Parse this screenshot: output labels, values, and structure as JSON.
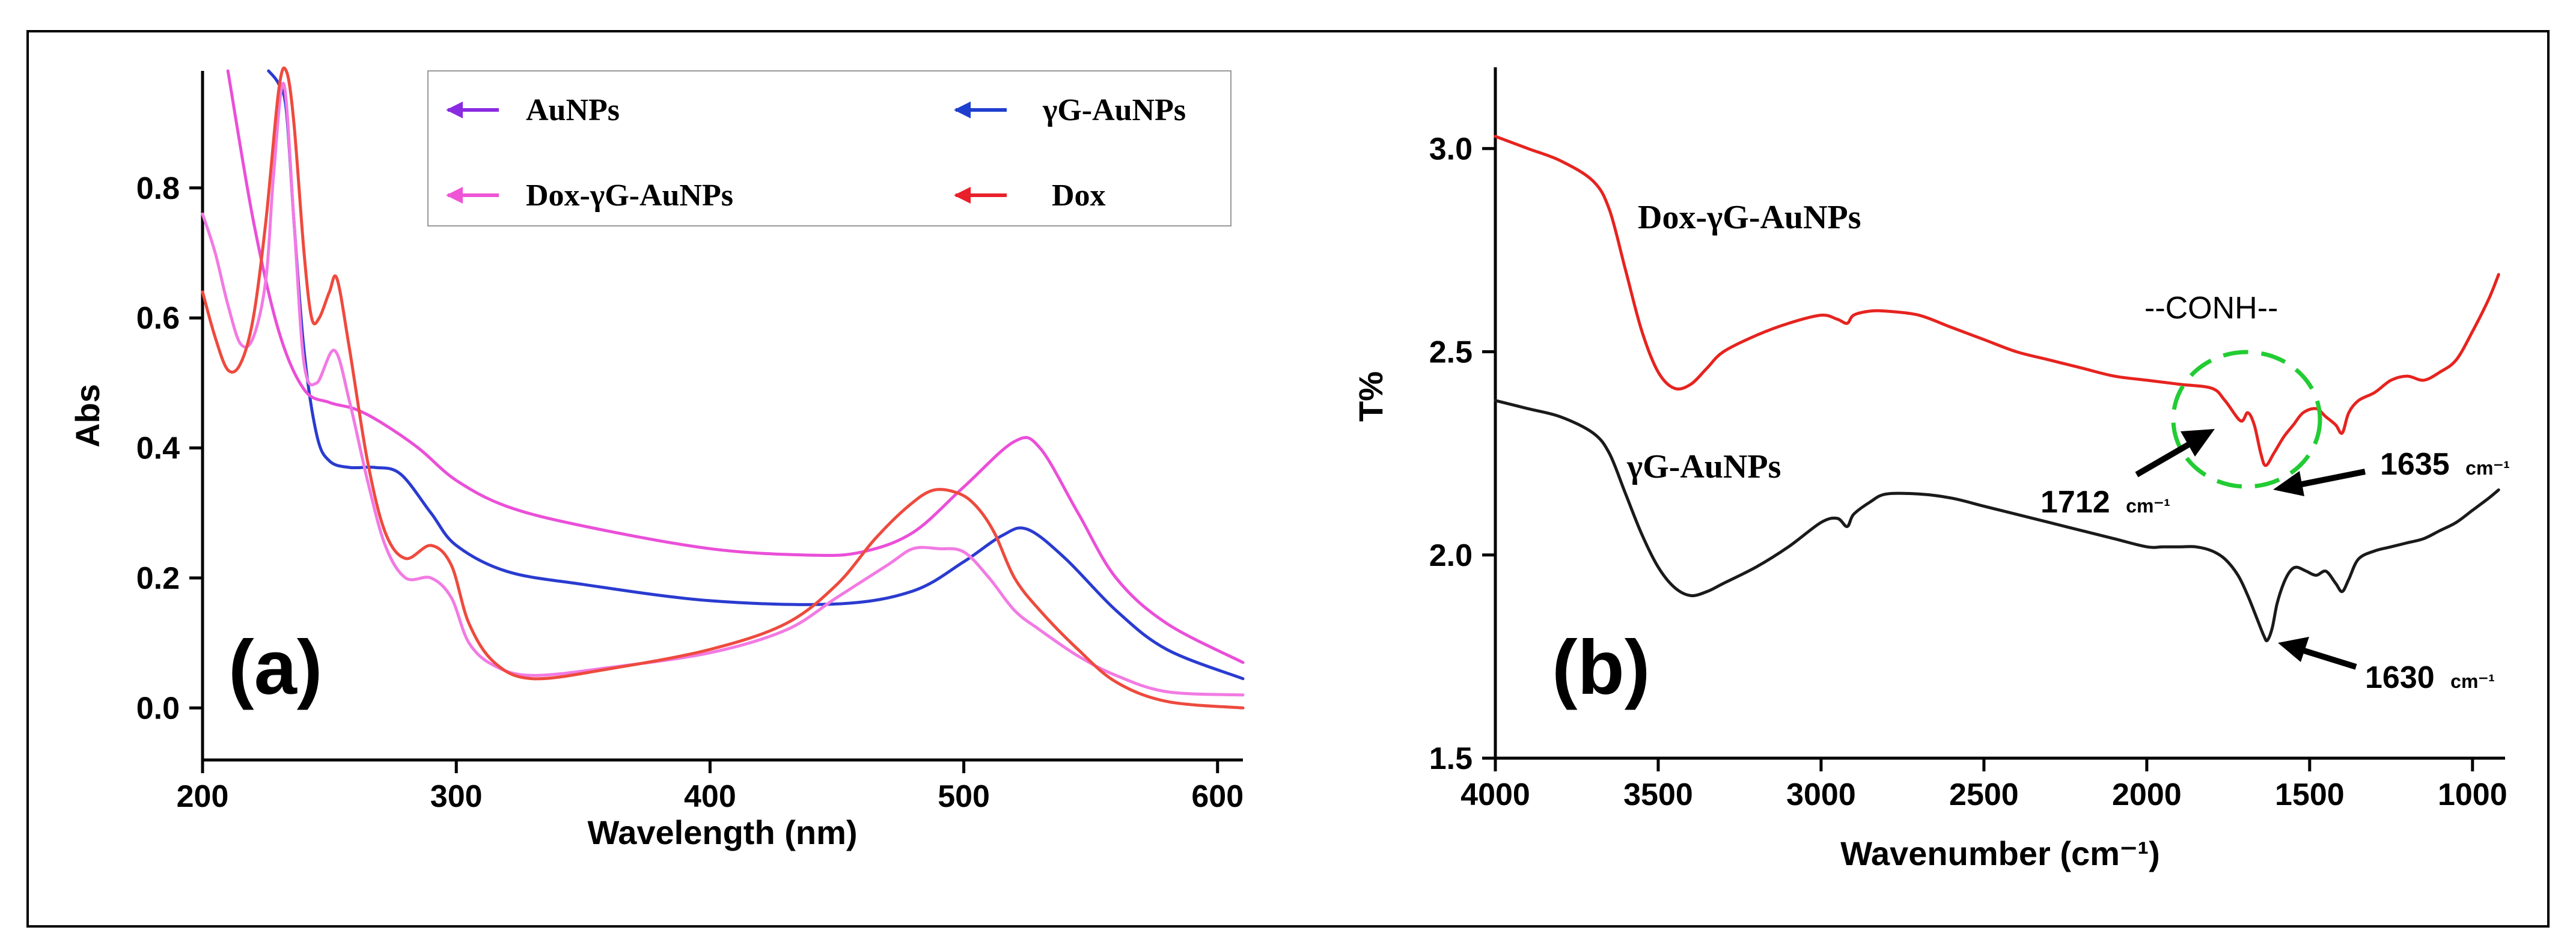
{
  "chart_data": [
    {
      "panel": "(a)",
      "type": "line",
      "xlabel": "Wavelength (nm)",
      "ylabel": "Abs",
      "xlim": [
        200,
        610
      ],
      "ylim": [
        -0.08,
        0.98
      ],
      "xticks": [
        200,
        300,
        400,
        500,
        600
      ],
      "yticks": [
        0.0,
        0.2,
        0.4,
        0.6,
        0.8
      ],
      "ytick_labels": [
        "0.0",
        "0.2",
        "0.4",
        "0.6",
        "0.8"
      ],
      "legend": [
        {
          "name": "AuNPs",
          "color": "#8a2be2"
        },
        {
          "name": "γG-AuNPs",
          "color": "#1f3fcf"
        },
        {
          "name": "Dox-γG-AuNPs",
          "color": "#ee55d6"
        },
        {
          "name": "Dox",
          "color": "#e8202a"
        }
      ],
      "series": [
        {
          "name": "γG-AuNPs",
          "color": "#2a3bd0",
          "x": [
            226,
            230,
            233,
            236,
            240,
            245,
            250,
            258,
            268,
            278,
            290,
            300,
            320,
            350,
            400,
            450,
            480,
            500,
            515,
            525,
            540,
            560,
            580,
            610
          ],
          "y": [
            0.98,
            0.96,
            0.92,
            0.75,
            0.55,
            0.42,
            0.38,
            0.37,
            0.37,
            0.36,
            0.3,
            0.25,
            0.21,
            0.19,
            0.165,
            0.16,
            0.18,
            0.225,
            0.265,
            0.275,
            0.23,
            0.15,
            0.09,
            0.045
          ]
        },
        {
          "name": "Dox-γG-AuNPs (magenta)",
          "color": "#ea4fd8",
          "x": [
            210,
            220,
            230,
            240,
            250,
            260,
            270,
            285,
            300,
            320,
            350,
            400,
            440,
            460,
            480,
            500,
            520,
            530,
            545,
            560,
            580,
            610
          ],
          "y": [
            0.98,
            0.75,
            0.58,
            0.49,
            0.47,
            0.46,
            0.44,
            0.4,
            0.35,
            0.31,
            0.28,
            0.245,
            0.235,
            0.24,
            0.27,
            0.34,
            0.41,
            0.4,
            0.3,
            0.2,
            0.13,
            0.07
          ]
        },
        {
          "name": "Dox-γG-AuNPs (light)",
          "color": "#f27ae3",
          "x": [
            200,
            205,
            210,
            215,
            220,
            225,
            228,
            232,
            236,
            240,
            245,
            252,
            258,
            265,
            272,
            280,
            290,
            298,
            305,
            315,
            330,
            360,
            400,
            430,
            450,
            470,
            480,
            490,
            500,
            510,
            520,
            530,
            545,
            560,
            580,
            610
          ],
          "y": [
            0.76,
            0.7,
            0.62,
            0.56,
            0.57,
            0.66,
            0.82,
            0.96,
            0.75,
            0.53,
            0.5,
            0.55,
            0.47,
            0.35,
            0.25,
            0.2,
            0.2,
            0.17,
            0.1,
            0.065,
            0.05,
            0.062,
            0.085,
            0.12,
            0.17,
            0.22,
            0.245,
            0.245,
            0.24,
            0.2,
            0.15,
            0.12,
            0.08,
            0.05,
            0.025,
            0.02
          ]
        },
        {
          "name": "Dox",
          "color": "#ee4a3e",
          "x": [
            200,
            205,
            210,
            215,
            220,
            225,
            230,
            233,
            236,
            240,
            243,
            246,
            250,
            253,
            258,
            265,
            272,
            280,
            290,
            298,
            305,
            315,
            330,
            360,
            400,
            430,
            450,
            465,
            478,
            488,
            498,
            505,
            512,
            520,
            530,
            545,
            560,
            580,
            610
          ],
          "y": [
            0.64,
            0.57,
            0.52,
            0.53,
            0.6,
            0.75,
            0.95,
            0.98,
            0.9,
            0.7,
            0.6,
            0.6,
            0.64,
            0.66,
            0.55,
            0.38,
            0.27,
            0.23,
            0.25,
            0.22,
            0.13,
            0.07,
            0.045,
            0.06,
            0.09,
            0.13,
            0.19,
            0.26,
            0.31,
            0.335,
            0.33,
            0.31,
            0.27,
            0.2,
            0.15,
            0.09,
            0.04,
            0.01,
            0.0
          ]
        }
      ]
    },
    {
      "panel": "(b)",
      "type": "line",
      "xlabel": "Wavenumber (cm⁻¹)",
      "ylabel": "T%",
      "xlim": [
        4000,
        900
      ],
      "ylim": [
        1.5,
        3.2
      ],
      "xticks": [
        4000,
        3500,
        3000,
        2500,
        2000,
        1500,
        1000
      ],
      "yticks": [
        1.5,
        2.0,
        2.5,
        3.0
      ],
      "ytick_labels": [
        "1.5",
        "2.0",
        "2.5",
        "3.0"
      ],
      "series": [
        {
          "name": "Dox-γG-AuNPs",
          "color": "#e6231f",
          "label": "Dox-γG-AuNPs",
          "x": [
            4000,
            3900,
            3800,
            3700,
            3650,
            3600,
            3550,
            3500,
            3450,
            3400,
            3350,
            3300,
            3200,
            3100,
            3000,
            2950,
            2920,
            2900,
            2850,
            2800,
            2700,
            2600,
            2500,
            2400,
            2300,
            2200,
            2100,
            2000,
            1900,
            1800,
            1760,
            1712,
            1690,
            1670,
            1650,
            1635,
            1610,
            1580,
            1550,
            1520,
            1480,
            1450,
            1420,
            1400,
            1380,
            1350,
            1300,
            1250,
            1200,
            1150,
            1100,
            1050,
            1000,
            950,
            920
          ],
          "y": [
            3.03,
            3.0,
            2.97,
            2.92,
            2.85,
            2.7,
            2.55,
            2.45,
            2.41,
            2.42,
            2.46,
            2.5,
            2.54,
            2.57,
            2.59,
            2.58,
            2.57,
            2.59,
            2.6,
            2.6,
            2.59,
            2.56,
            2.53,
            2.5,
            2.48,
            2.46,
            2.44,
            2.43,
            2.42,
            2.41,
            2.38,
            2.33,
            2.35,
            2.32,
            2.25,
            2.22,
            2.25,
            2.29,
            2.32,
            2.35,
            2.36,
            2.34,
            2.32,
            2.3,
            2.35,
            2.38,
            2.4,
            2.43,
            2.44,
            2.43,
            2.45,
            2.48,
            2.55,
            2.63,
            2.69
          ]
        },
        {
          "name": "γG-AuNPs",
          "color": "#1a1a1a",
          "label": "γG-AuNPs",
          "x": [
            4000,
            3900,
            3800,
            3700,
            3650,
            3600,
            3550,
            3500,
            3450,
            3400,
            3350,
            3300,
            3200,
            3100,
            3000,
            2950,
            2920,
            2900,
            2850,
            2800,
            2700,
            2600,
            2500,
            2400,
            2300,
            2200,
            2100,
            2000,
            1950,
            1900,
            1850,
            1800,
            1760,
            1720,
            1690,
            1660,
            1640,
            1630,
            1615,
            1600,
            1580,
            1560,
            1540,
            1510,
            1480,
            1450,
            1420,
            1400,
            1380,
            1350,
            1300,
            1250,
            1200,
            1150,
            1100,
            1050,
            1000,
            950,
            920
          ],
          "y": [
            2.38,
            2.36,
            2.34,
            2.3,
            2.25,
            2.15,
            2.05,
            1.97,
            1.92,
            1.9,
            1.91,
            1.93,
            1.97,
            2.02,
            2.08,
            2.09,
            2.07,
            2.1,
            2.13,
            2.15,
            2.15,
            2.14,
            2.12,
            2.1,
            2.08,
            2.06,
            2.04,
            2.02,
            2.02,
            2.02,
            2.02,
            2.01,
            1.99,
            1.95,
            1.9,
            1.84,
            1.8,
            1.79,
            1.82,
            1.88,
            1.93,
            1.96,
            1.97,
            1.96,
            1.95,
            1.96,
            1.93,
            1.91,
            1.94,
            1.99,
            2.01,
            2.02,
            2.03,
            2.04,
            2.06,
            2.08,
            2.11,
            2.14,
            2.16
          ]
        }
      ],
      "annotations": [
        {
          "text": "--CONH--"
        },
        {
          "value": "1712",
          "unit": "cm⁻¹"
        },
        {
          "value": "1635",
          "unit": "cm⁻¹"
        },
        {
          "value": "1630",
          "unit": "cm⁻¹"
        }
      ]
    }
  ]
}
